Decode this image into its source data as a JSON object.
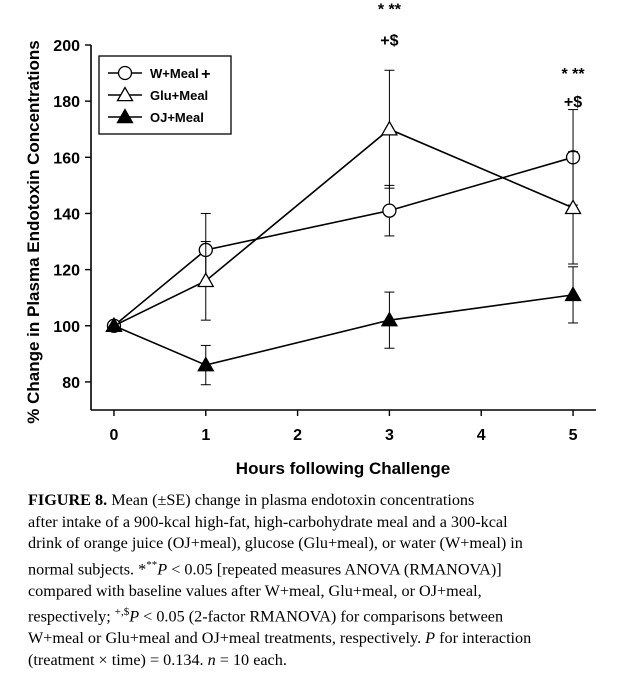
{
  "chart_data": {
    "type": "line",
    "xlabel": "Hours following Challenge",
    "ylabel": "% Change in Plasma Endotoxin Concentrations",
    "xlim": [
      -0.25,
      5.25
    ],
    "ylim": [
      70,
      200
    ],
    "xticks": [
      "0",
      "1",
      "2",
      "3",
      "4",
      "5"
    ],
    "yticks": [
      "80",
      "100",
      "120",
      "140",
      "160",
      "180",
      "200"
    ],
    "legend_position": "top-left",
    "series": [
      {
        "name": "W+Meal",
        "marker": "circle-open",
        "x": [
          0,
          1,
          3,
          5
        ],
        "y": [
          100,
          127,
          141,
          160
        ],
        "err": [
          0,
          13,
          9,
          17
        ]
      },
      {
        "name": "Glu+Meal",
        "marker": "triangle-open",
        "x": [
          0,
          1,
          3,
          5
        ],
        "y": [
          100,
          116,
          170,
          142
        ],
        "err": [
          0,
          14,
          21,
          20
        ]
      },
      {
        "name": "OJ+Meal",
        "marker": "triangle-filled",
        "x": [
          0,
          1,
          3,
          5
        ],
        "y": [
          100,
          86,
          102,
          111
        ],
        "err": [
          0,
          7,
          10,
          10
        ]
      }
    ],
    "annotations": [
      {
        "text": "+",
        "x": 1,
        "y": 190
      },
      {
        "text": "* **",
        "x": 3,
        "y": 213
      },
      {
        "text": "+$",
        "x": 3,
        "y": 202
      },
      {
        "text": "* **",
        "x": 5,
        "y": 190
      },
      {
        "text": "+$",
        "x": 5,
        "y": 180
      }
    ]
  },
  "caption": {
    "figure_label": "FIGURE 8.",
    "line1": "Mean (±SE) change in plasma endotoxin concentrations",
    "line2": "after intake of a 900-kcal high-fat, high-carbohydrate meal and a 300-kcal",
    "line3": "drink of orange juice (OJ+meal), glucose (Glu+meal), or water (W+meal) in",
    "line4a": "normal subjects. *",
    "line4b": "**",
    "line4c": "P",
    "line4d": " < 0.05 [repeated measures ANOVA (RMANOVA)]",
    "line5": "compared with baseline values after W+meal, Glu+meal, or OJ+meal,",
    "line6a": "respectively; ",
    "line6b": "+,$",
    "line6c": "P",
    "line6d": " < 0.05 (2-factor RMANOVA) for comparisons between",
    "line7a": "W+meal or Glu+meal and OJ+meal treatments, respectively. ",
    "line7b": "P",
    "line7c": " for interaction",
    "line8a": "(treatment × time) = 0.134. ",
    "line8b": "n",
    "line8c": " = 10 each."
  }
}
